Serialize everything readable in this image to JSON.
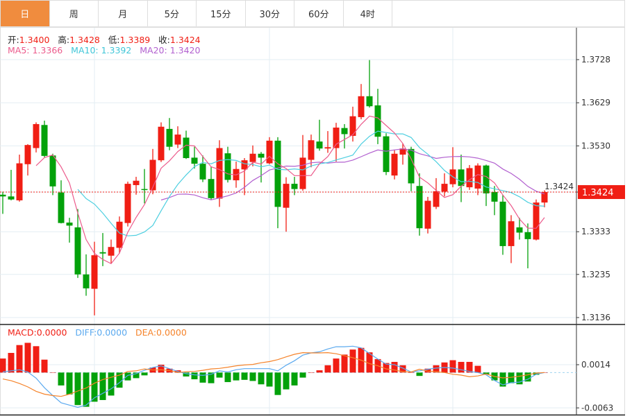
{
  "tabs": [
    {
      "label": "日",
      "active": true
    },
    {
      "label": "周"
    },
    {
      "label": "月"
    },
    {
      "label": "5分"
    },
    {
      "label": "15分"
    },
    {
      "label": "30分"
    },
    {
      "label": "60分"
    },
    {
      "label": "4时"
    }
  ],
  "legend": {
    "open_label": "开:",
    "open": "1.3400",
    "high_label": "高:",
    "high": "1.3428",
    "low_label": "低:",
    "low": "1.3389",
    "close_label": "收:",
    "close": "1.3424",
    "ma5_label": "MA5: ",
    "ma5": "1.3366",
    "ma10_label": "MA10: ",
    "ma10": "1.3392",
    "ma20_label": "MA20: ",
    "ma20": "1.3420"
  },
  "macd_legend": {
    "macd_label": "MACD:",
    "macd": "0.0000",
    "diff_label": "DIFF:",
    "diff": "0.0000",
    "dea_label": "DEA:",
    "dea": "0.0000"
  },
  "colors": {
    "up": "#f01e14",
    "down": "#03a10a",
    "ma5": "#ec5b8c",
    "ma10": "#4dcfe0",
    "ma20": "#b15fcf",
    "diff": "#5aa9ef",
    "dea": "#f5832a",
    "active_tab": "#f08c3e"
  },
  "chart_data": [
    {
      "type": "candlestick",
      "y_ticks": [
        "1.3728",
        "1.3629",
        "1.3530",
        "1.3424",
        "1.3333",
        "1.3235",
        "1.3136"
      ],
      "ylim": [
        1.3136,
        1.3728
      ],
      "last_price": "1.3424",
      "grid": true,
      "ohlc": [
        [
          1.3418,
          1.3425,
          1.3374,
          1.3414
        ],
        [
          1.3414,
          1.3475,
          1.3405,
          1.3407
        ],
        [
          1.3405,
          1.351,
          1.3402,
          1.349
        ],
        [
          1.3488,
          1.3534,
          1.3462,
          1.3532
        ],
        [
          1.3525,
          1.3584,
          1.3515,
          1.358
        ],
        [
          1.3578,
          1.3588,
          1.3504,
          1.3507
        ],
        [
          1.3508,
          1.3512,
          1.3417,
          1.3437
        ],
        [
          1.3423,
          1.3451,
          1.3352,
          1.3353
        ],
        [
          1.3354,
          1.3365,
          1.3308,
          1.3347
        ],
        [
          1.3343,
          1.3385,
          1.3227,
          1.3235
        ],
        [
          1.3235,
          1.3281,
          1.3186,
          1.3203
        ],
        [
          1.3202,
          1.331,
          1.3141,
          1.3279
        ],
        [
          1.3286,
          1.333,
          1.3254,
          1.3283
        ],
        [
          1.3278,
          1.3315,
          1.3261,
          1.3298
        ],
        [
          1.3296,
          1.3368,
          1.3283,
          1.3356
        ],
        [
          1.3353,
          1.3448,
          1.3345,
          1.3443
        ],
        [
          1.344,
          1.3459,
          1.3418,
          1.345
        ],
        [
          1.3431,
          1.3477,
          1.3398,
          1.3429
        ],
        [
          1.3428,
          1.3523,
          1.3419,
          1.3498
        ],
        [
          1.3497,
          1.3584,
          1.3493,
          1.3574
        ],
        [
          1.3569,
          1.3594,
          1.352,
          1.3528
        ],
        [
          1.3533,
          1.3575,
          1.3525,
          1.3556
        ],
        [
          1.3549,
          1.3565,
          1.35,
          1.3502
        ],
        [
          1.3503,
          1.3528,
          1.3478,
          1.3489
        ],
        [
          1.3489,
          1.3508,
          1.3447,
          1.3453
        ],
        [
          1.3454,
          1.3483,
          1.3406,
          1.341
        ],
        [
          1.3409,
          1.3543,
          1.339,
          1.3525
        ],
        [
          1.3513,
          1.3528,
          1.3446,
          1.3452
        ],
        [
          1.3451,
          1.3494,
          1.3434,
          1.3477
        ],
        [
          1.3476,
          1.3502,
          1.3417,
          1.3497
        ],
        [
          1.3493,
          1.3531,
          1.3483,
          1.3512
        ],
        [
          1.3512,
          1.3516,
          1.3446,
          1.3503
        ],
        [
          1.349,
          1.355,
          1.3488,
          1.3542
        ],
        [
          1.3542,
          1.355,
          1.3341,
          1.339
        ],
        [
          1.3388,
          1.3458,
          1.3333,
          1.3443
        ],
        [
          1.3443,
          1.3459,
          1.3417,
          1.3431
        ],
        [
          1.3431,
          1.3555,
          1.3427,
          1.3503
        ],
        [
          1.3498,
          1.3556,
          1.3481,
          1.3543
        ],
        [
          1.354,
          1.359,
          1.3519,
          1.3524
        ],
        [
          1.3524,
          1.3564,
          1.3514,
          1.3527
        ],
        [
          1.3525,
          1.3583,
          1.3494,
          1.3572
        ],
        [
          1.3571,
          1.358,
          1.3524,
          1.3557
        ],
        [
          1.3553,
          1.362,
          1.354,
          1.3598
        ],
        [
          1.3596,
          1.3672,
          1.3591,
          1.3644
        ],
        [
          1.3644,
          1.3727,
          1.3618,
          1.3621
        ],
        [
          1.3623,
          1.3661,
          1.3534,
          1.3551
        ],
        [
          1.3552,
          1.3559,
          1.3463,
          1.347
        ],
        [
          1.3462,
          1.352,
          1.3453,
          1.3512
        ],
        [
          1.351,
          1.3536,
          1.3487,
          1.3524
        ],
        [
          1.3523,
          1.3528,
          1.3426,
          1.3444
        ],
        [
          1.3438,
          1.3467,
          1.3324,
          1.3341
        ],
        [
          1.334,
          1.3413,
          1.3329,
          1.3404
        ],
        [
          1.339,
          1.3456,
          1.3385,
          1.3426
        ],
        [
          1.3425,
          1.3467,
          1.3414,
          1.3443
        ],
        [
          1.3442,
          1.3527,
          1.3435,
          1.3476
        ],
        [
          1.3476,
          1.351,
          1.3401,
          1.3438
        ],
        [
          1.3435,
          1.3486,
          1.3429,
          1.3479
        ],
        [
          1.3432,
          1.349,
          1.3417,
          1.3485
        ],
        [
          1.3485,
          1.3487,
          1.3392,
          1.3421
        ],
        [
          1.3424,
          1.3438,
          1.3371,
          1.3402
        ],
        [
          1.3402,
          1.3417,
          1.328,
          1.33
        ],
        [
          1.33,
          1.3371,
          1.3261,
          1.3357
        ],
        [
          1.3343,
          1.3365,
          1.3315,
          1.3331
        ],
        [
          1.3332,
          1.3352,
          1.3249,
          1.3316
        ],
        [
          1.3315,
          1.3407,
          1.3313,
          1.34
        ],
        [
          1.34,
          1.3428,
          1.3389,
          1.3424
        ]
      ]
    },
    {
      "type": "bar+line",
      "y_ticks": [
        "0.0014",
        "-0.0063"
      ],
      "ylim": [
        -0.0063,
        0.0014
      ],
      "macd": [
        0.0025,
        0.0035,
        0.0049,
        0.0053,
        0.0047,
        0.0023,
        0,
        -0.0023,
        -0.0039,
        -0.0058,
        -0.0061,
        -0.0052,
        -0.0049,
        -0.0041,
        -0.0027,
        -0.0014,
        -0.001,
        -0.0005,
        0.0009,
        0.0014,
        0.0007,
        0.0004,
        -0.0007,
        -0.0012,
        -0.0018,
        -0.0019,
        -0.0009,
        -0.0017,
        -0.0014,
        -0.0013,
        -0.0015,
        -0.0021,
        -0.0025,
        -0.004,
        -0.003,
        -0.0023,
        -0.0009,
        0,
        0.0004,
        0.0013,
        0.0025,
        0.0032,
        0.0041,
        0.0044,
        0.0036,
        0.0024,
        0.0017,
        0.0019,
        0.0013,
        0,
        -0.0006,
        0.0007,
        0.0013,
        0.0018,
        0.0022,
        0.0019,
        0.0019,
        0.0012,
        -0.0003,
        -0.0014,
        -0.0025,
        -0.0019,
        -0.0021,
        -0.0016,
        -0.0004,
        0
      ],
      "diff": [
        0.0001,
        0.0003,
        0.0005,
        0.0001,
        -0.001,
        -0.0027,
        -0.0041,
        -0.0054,
        -0.0058,
        -0.0062,
        -0.0058,
        -0.0045,
        -0.0037,
        -0.0029,
        -0.0018,
        -0.0005,
        -0.0002,
        0.0004,
        0.0009,
        0.0012,
        0.0007,
        0.0002,
        -0.0002,
        -0.0004,
        -0.0005,
        -0.0003,
        0.0003,
        0.0001,
        0.0005,
        0.0007,
        0.0007,
        0.0007,
        0.0007,
        0.0003,
        0.0013,
        0.0021,
        0.0031,
        0.0035,
        0.0037,
        0.0042,
        0.0046,
        0.0046,
        0.0047,
        0.0044,
        0.0034,
        0.0024,
        0.0015,
        0.0014,
        0.0008,
        0.0001,
        0.0003,
        0.0006,
        0.0008,
        0.0009,
        0.0008,
        0.0005,
        0.0002,
        0.0,
        -0.0004,
        -0.0014,
        -0.0022,
        -0.0018,
        -0.0017,
        -0.0012,
        -0.0003,
        0.0
      ]
    }
  ]
}
